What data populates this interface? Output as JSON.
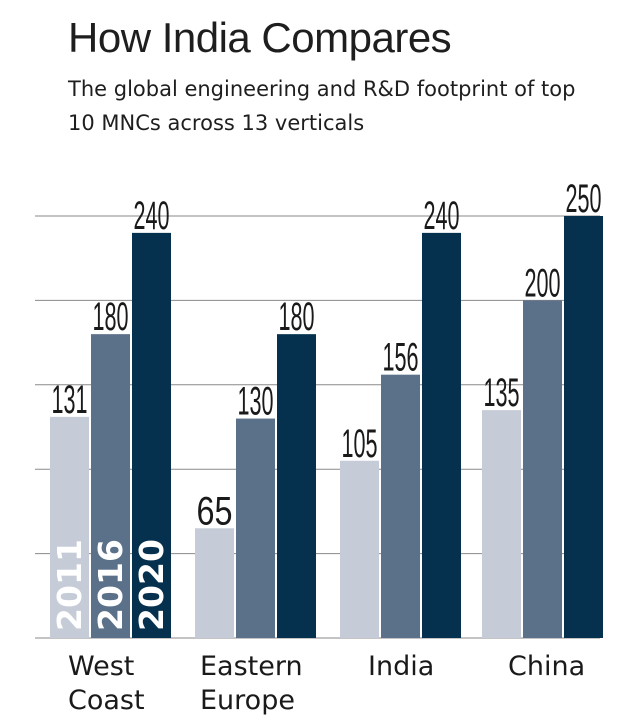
{
  "chart_data": {
    "type": "bar",
    "title": "How India Compares",
    "subtitle": "The global engineering and R&D footprint of top 10 MNCs across 13 verticals",
    "categories": [
      [
        "West",
        "Coast"
      ],
      [
        "Eastern",
        "Europe"
      ],
      [
        "India"
      ],
      [
        "China"
      ]
    ],
    "series": [
      {
        "name": "2011",
        "color": "#c5cbd7",
        "values": [
          131,
          65,
          105,
          135
        ]
      },
      {
        "name": "2016",
        "color": "#5b7089",
        "values": [
          180,
          130,
          156,
          200
        ]
      },
      {
        "name": "2020",
        "color": "#05314f",
        "values": [
          240,
          180,
          240,
          250
        ]
      }
    ],
    "ylim": [
      0,
      250
    ],
    "grid": true,
    "legend": "inside first group bars, vertical year labels"
  }
}
